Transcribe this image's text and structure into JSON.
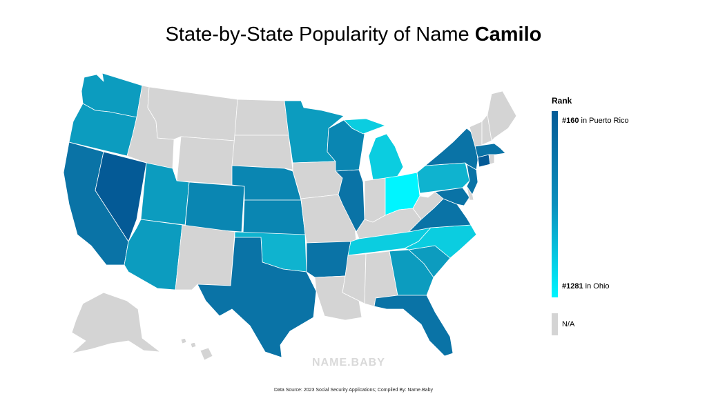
{
  "title": {
    "prefix": "State-by-State Popularity of Name ",
    "name": "Camilo"
  },
  "legend": {
    "title": "Rank",
    "top_rank": "#160",
    "top_place": " in Puerto Rico",
    "bottom_rank": "#1281",
    "bottom_place": " in Ohio",
    "na_label": "N/A"
  },
  "colors": {
    "darkest": "#045a96",
    "dark": "#0a73a6",
    "mid_dark": "#0a86b2",
    "mid": "#0c9cbf",
    "light": "#0fb3cf",
    "lighter": "#0bcde0",
    "lightest": "#00f5ff",
    "na": "#d4d4d4"
  },
  "watermark": "NAME.BABY",
  "source": "Data Source: 2023 Social Security Applications; Compiled By: Name.Baby"
}
